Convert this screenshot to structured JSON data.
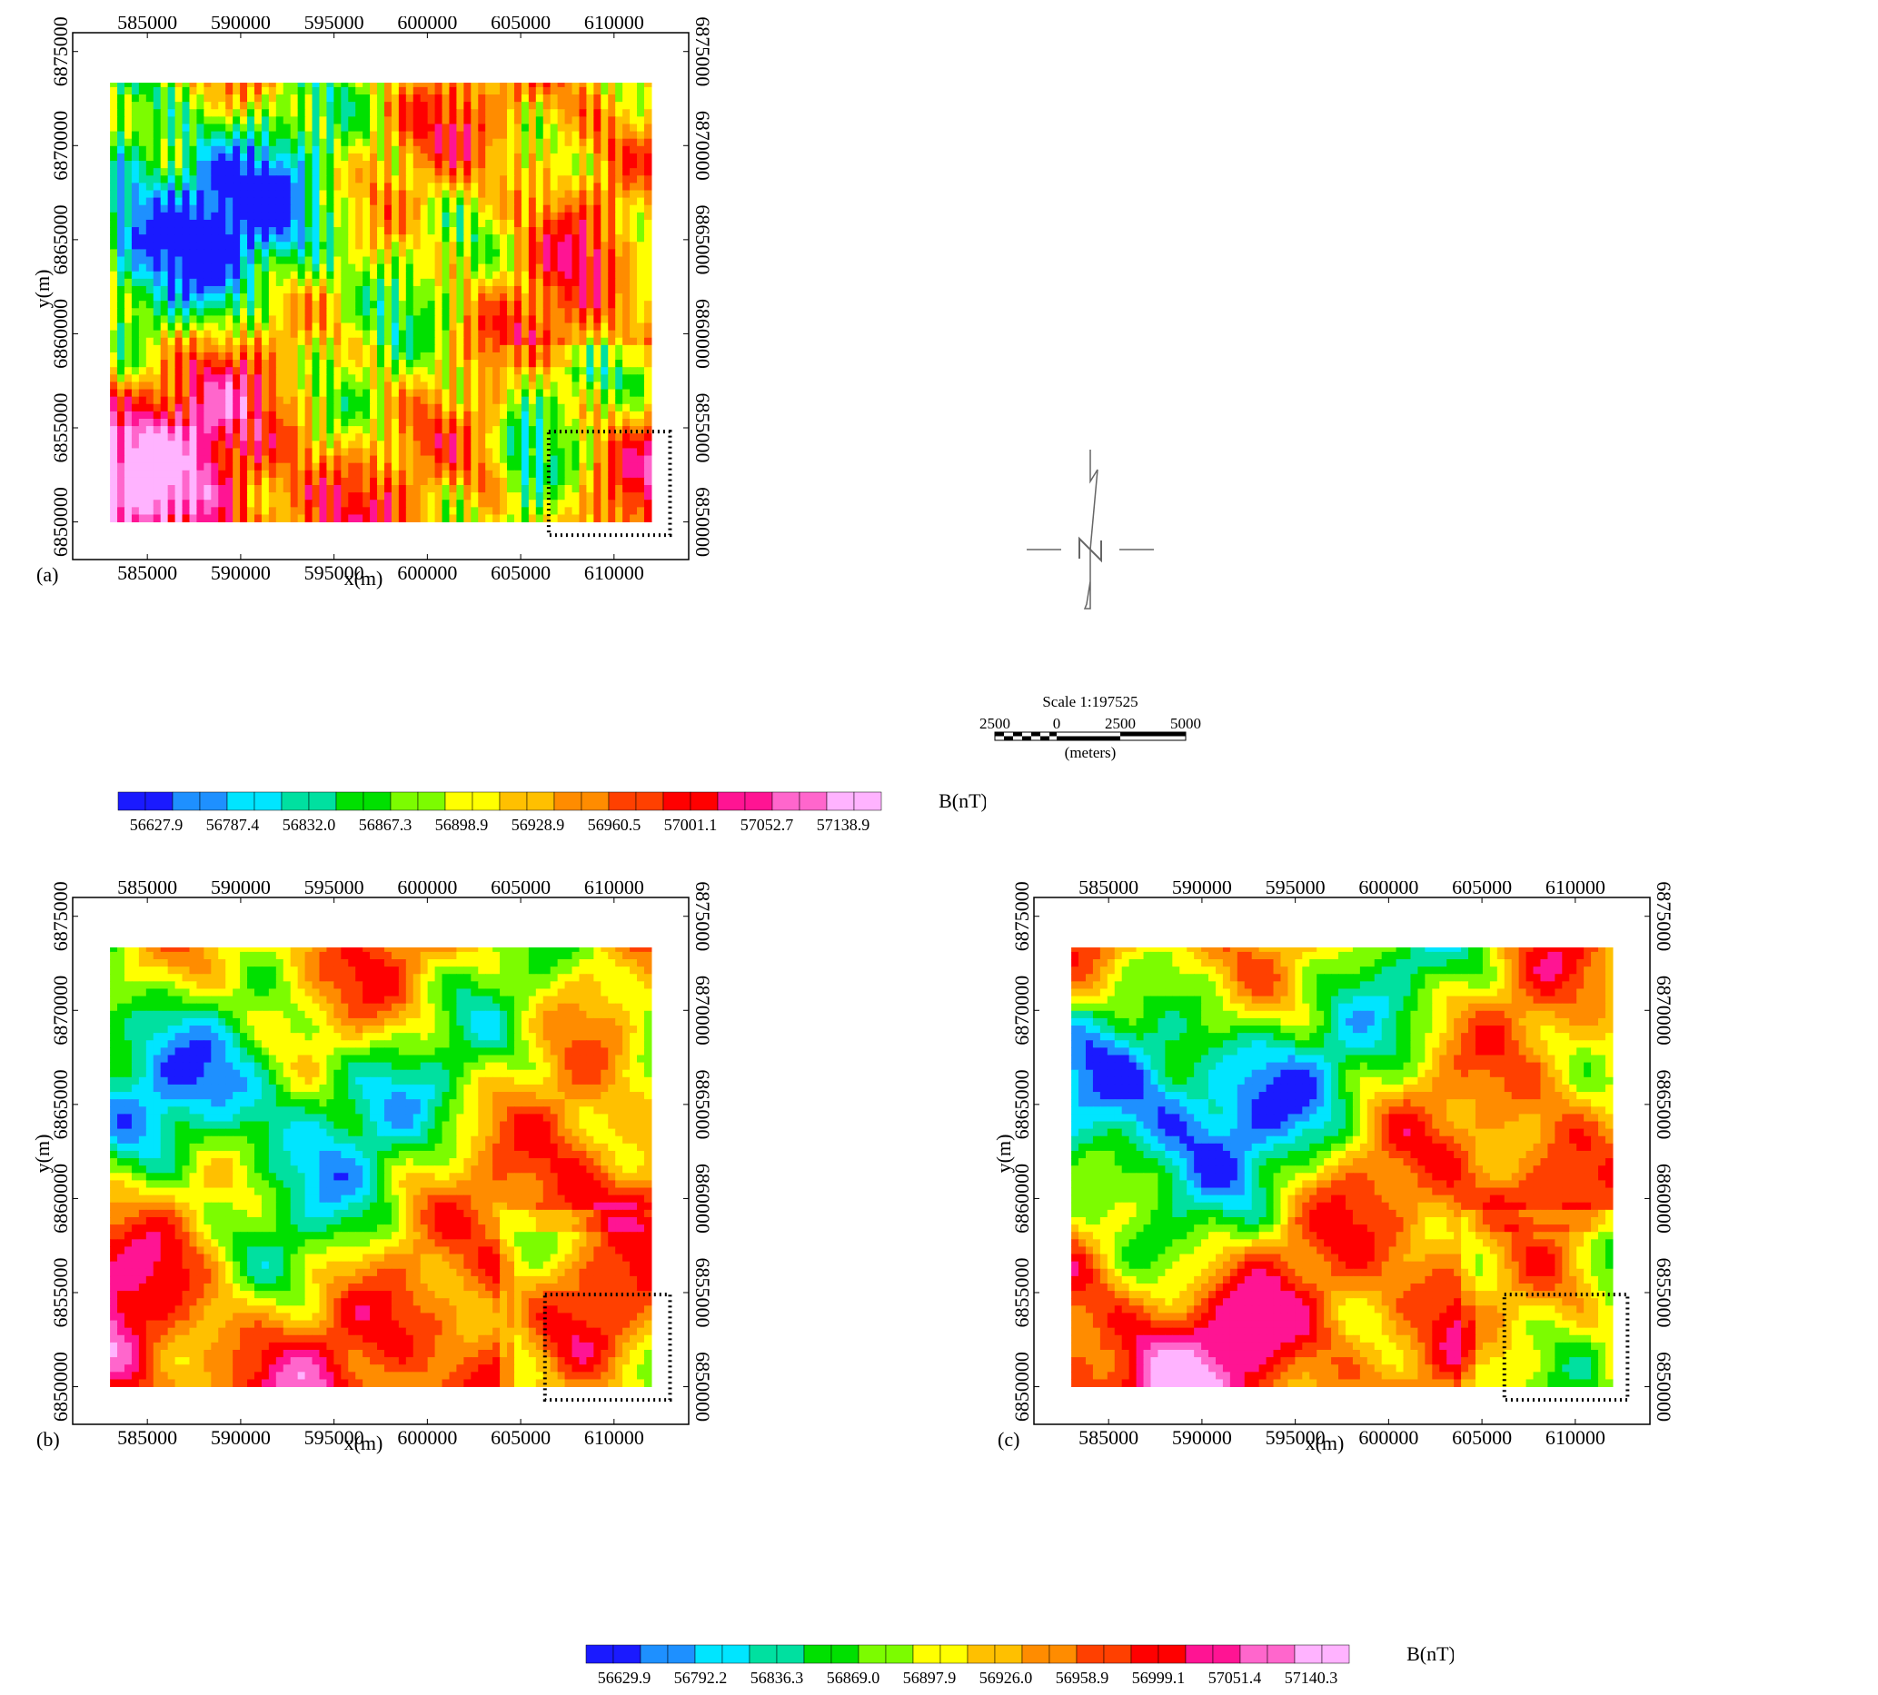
{
  "panels": [
    {
      "id": "a",
      "label": "(a)",
      "xlabel": "x(m)",
      "ylabel": "y(m)",
      "x_ticks": [
        "585000",
        "590000",
        "595000",
        "600000",
        "605000",
        "610000"
      ],
      "y_ticks": [
        "6850000",
        "6855000",
        "6860000",
        "6865000",
        "6870000",
        "6875000"
      ],
      "highlight_box": {
        "x": [
          606500,
          613000
        ],
        "y": [
          6849300,
          6854800
        ]
      }
    },
    {
      "id": "b",
      "label": "(b)",
      "xlabel": "x(m)",
      "ylabel": "y(m)",
      "x_ticks": [
        "585000",
        "590000",
        "595000",
        "600000",
        "605000",
        "610000"
      ],
      "y_ticks": [
        "6850000",
        "6855000",
        "6860000",
        "6865000",
        "6870000",
        "6875000"
      ],
      "highlight_box": {
        "x": [
          606300,
          613000
        ],
        "y": [
          6849300,
          6854900
        ]
      }
    },
    {
      "id": "c",
      "label": "(c)",
      "xlabel": "x(m)",
      "ylabel": "y(m)",
      "x_ticks": [
        "585000",
        "590000",
        "595000",
        "600000",
        "605000",
        "610000"
      ],
      "y_ticks": [
        "6850000",
        "6855000",
        "6860000",
        "6865000",
        "6870000",
        "6875000"
      ],
      "highlight_box": {
        "x": [
          606200,
          612800
        ],
        "y": [
          6849300,
          6854900
        ]
      }
    }
  ],
  "colorbar_1": {
    "unit": "B(nT)",
    "labels": [
      "56627.9",
      "56787.4",
      "56832.0",
      "56867.3",
      "56898.9",
      "56928.9",
      "56960.5",
      "57001.1",
      "57052.7",
      "57138.9"
    ]
  },
  "colorbar_2": {
    "unit": "B(nT)",
    "labels": [
      "56629.9",
      "56792.2",
      "56836.3",
      "56869.0",
      "56897.9",
      "56926.0",
      "56958.9",
      "56999.1",
      "57051.4",
      "57140.3"
    ]
  },
  "scale": {
    "title": "Scale 1:197525",
    "ticks": [
      "2500",
      "0",
      "2500",
      "5000"
    ],
    "unit": "(meters)"
  },
  "chart_data": {
    "type": "heatmap",
    "title": "",
    "x_range": [
      583000,
      612000
    ],
    "y_range": [
      6850000,
      6873500
    ],
    "axis_x_extent": [
      581000,
      614000
    ],
    "axis_y_extent": [
      6848000,
      6876000
    ],
    "colormap": [
      "#1a1aff",
      "#1e90ff",
      "#00e5ff",
      "#00e0a0",
      "#00e000",
      "#7cfc00",
      "#ffff00",
      "#ffc000",
      "#ff8c00",
      "#ff4000",
      "#ff0000",
      "#ff1493",
      "#ff66cc",
      "#ffb3ff"
    ],
    "grid": false
  },
  "colors": {
    "frame": "#000000",
    "box": "#000000"
  }
}
